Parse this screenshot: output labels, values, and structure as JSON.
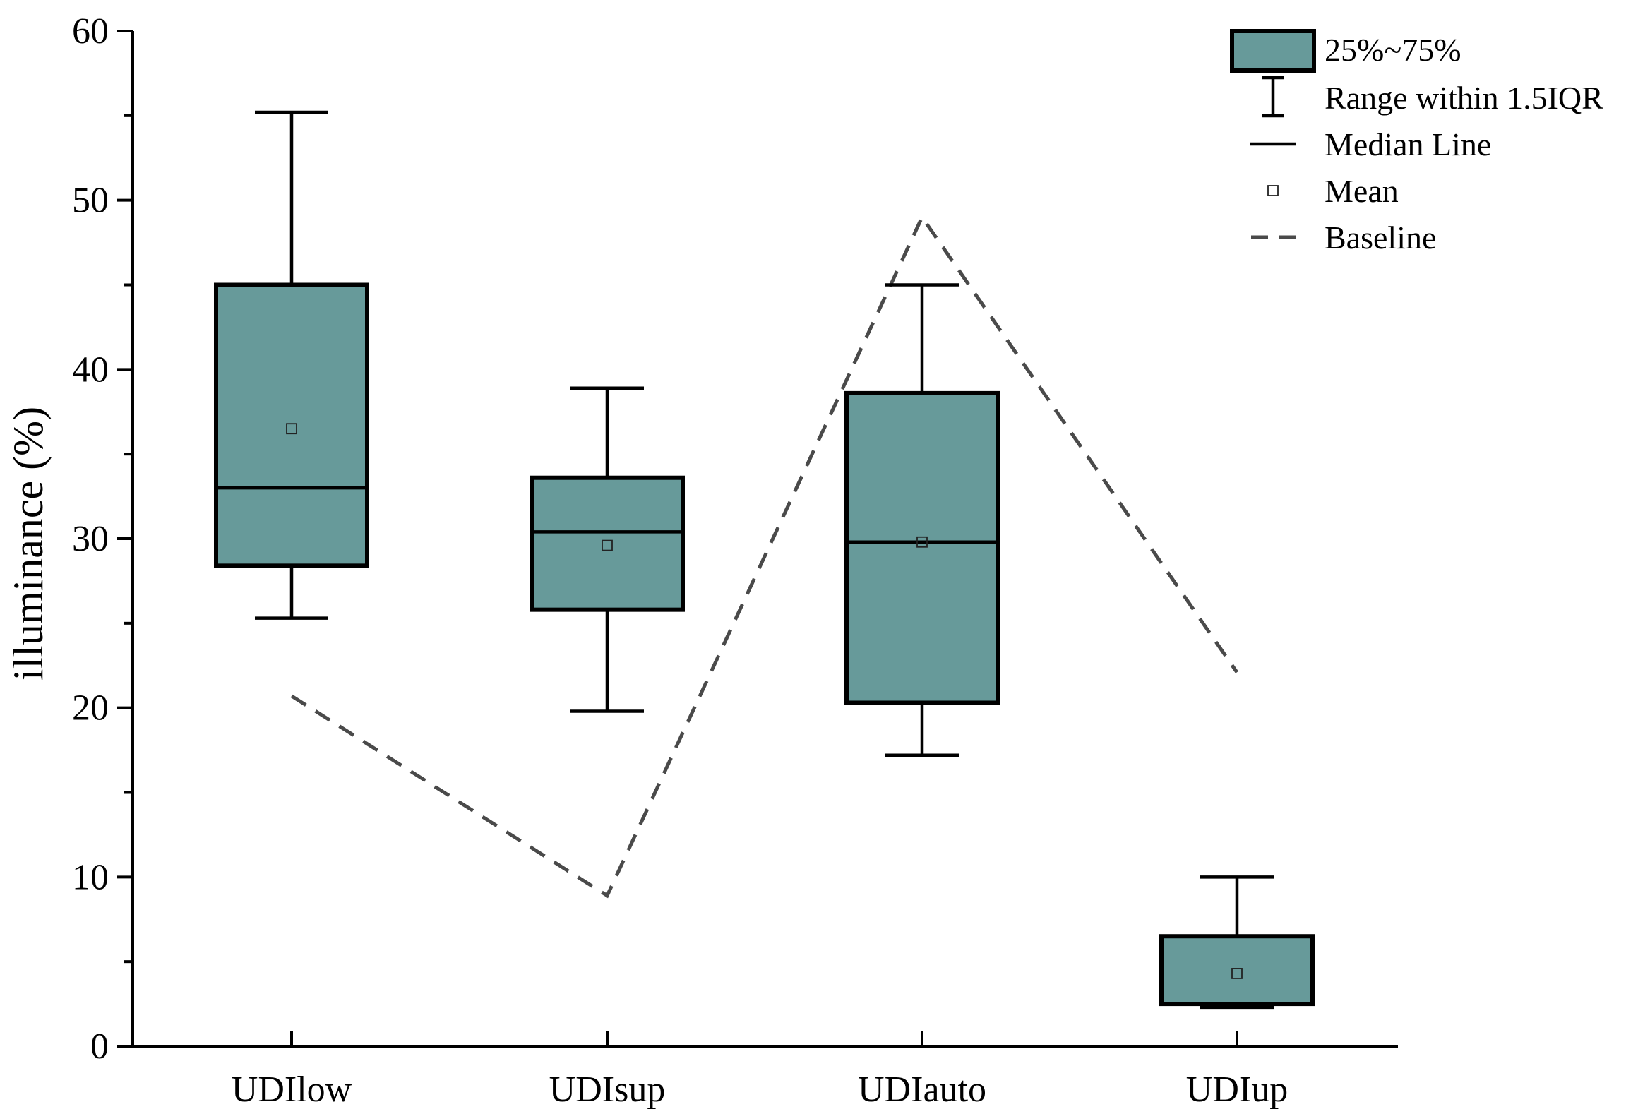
{
  "chart_data": {
    "type": "box",
    "categories": [
      "UDIlow",
      "UDIsup",
      "UDIauto",
      "UDIup"
    ],
    "ylabel": "illuminance (%)",
    "xlabel": "",
    "ylim": [
      0,
      60
    ],
    "yticks": [
      0,
      10,
      20,
      30,
      40,
      50,
      60
    ],
    "box_color": "#679a9a",
    "boxes": [
      {
        "category": "UDIlow",
        "whisker_low": 25.3,
        "q1": 28.4,
        "median": 33.0,
        "q3": 45.0,
        "whisker_high": 55.2,
        "mean": 36.5
      },
      {
        "category": "UDIsup",
        "whisker_low": 19.8,
        "q1": 25.8,
        "median": 30.4,
        "q3": 33.6,
        "whisker_high": 38.9,
        "mean": 29.6
      },
      {
        "category": "UDIauto",
        "whisker_low": 17.2,
        "q1": 20.3,
        "median": 29.8,
        "q3": 38.6,
        "whisker_high": 45.0,
        "mean": 29.8
      },
      {
        "category": "UDIup",
        "whisker_low": 2.3,
        "q1": 2.5,
        "median": 2.5,
        "q3": 6.5,
        "whisker_high": 10.0,
        "mean": 4.3
      }
    ],
    "baseline": {
      "name": "Baseline",
      "style": "dashed",
      "color": "#4a4a4a",
      "values": [
        20.7,
        8.9,
        49.0,
        22.1
      ]
    },
    "legend": {
      "position": "top-right",
      "entries": [
        {
          "kind": "box",
          "label": "25%~75%"
        },
        {
          "kind": "whisker",
          "label": "Range within 1.5IQR"
        },
        {
          "kind": "median",
          "label": "Median Line"
        },
        {
          "kind": "mean",
          "label": "Mean"
        },
        {
          "kind": "baseline",
          "label": "Baseline"
        }
      ]
    },
    "grid": false
  }
}
